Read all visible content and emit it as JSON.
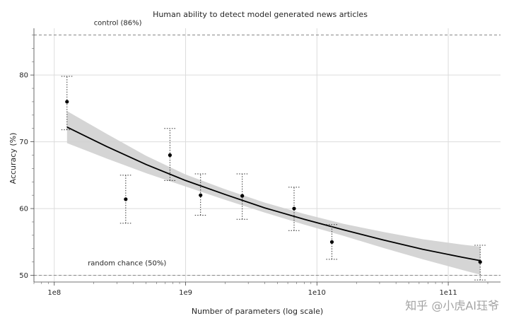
{
  "chart_data": {
    "type": "scatter",
    "title": "Human ability to detect model generated news articles",
    "xlabel": "Number of parameters (log scale)",
    "ylabel": "Accuracy (%)",
    "x_scale": "log",
    "xlim": [
      70000000,
      250000000000
    ],
    "ylim": [
      49,
      87
    ],
    "x_ticks": [
      {
        "value": 100000000,
        "label": "1e8"
      },
      {
        "value": 1000000000,
        "label": "1e9"
      },
      {
        "value": 10000000000,
        "label": "1e10"
      },
      {
        "value": 100000000000,
        "label": "1e11"
      }
    ],
    "y_ticks": [
      50,
      60,
      70,
      80
    ],
    "grid": true,
    "points": [
      {
        "x": 125000000,
        "y": 76.0,
        "ylow": 71.8,
        "yhigh": 79.8
      },
      {
        "x": 350000000,
        "y": 61.4,
        "ylow": 57.8,
        "yhigh": 65.0
      },
      {
        "x": 760000000,
        "y": 68.0,
        "ylow": 64.2,
        "yhigh": 72.0
      },
      {
        "x": 1300000000,
        "y": 62.0,
        "ylow": 59.0,
        "yhigh": 65.2
      },
      {
        "x": 2700000000,
        "y": 61.9,
        "ylow": 58.4,
        "yhigh": 65.2
      },
      {
        "x": 6700000000,
        "y": 60.0,
        "ylow": 56.7,
        "yhigh": 63.2
      },
      {
        "x": 13000000000,
        "y": 55.0,
        "ylow": 52.4,
        "yhigh": 57.6
      },
      {
        "x": 175000000000,
        "y": 52.0,
        "ylow": 49.3,
        "yhigh": 54.5
      }
    ],
    "fit_curve": {
      "x": [
        125000000,
        250000000,
        500000000,
        1000000000,
        2000000000,
        4000000000,
        8000000000,
        16000000000,
        32000000000,
        64000000000,
        128000000000,
        175000000000
      ],
      "y": [
        72.2,
        69.3,
        66.6,
        64.2,
        62.1,
        60.1,
        58.4,
        56.8,
        55.3,
        53.9,
        52.7,
        52.2
      ],
      "y_low": [
        69.8,
        67.5,
        65.3,
        63.3,
        61.3,
        59.4,
        57.6,
        55.9,
        54.1,
        52.4,
        50.8,
        50.1
      ],
      "y_high": [
        74.6,
        71.2,
        67.9,
        65.1,
        62.9,
        60.9,
        59.2,
        57.7,
        56.5,
        55.4,
        54.6,
        54.3
      ]
    },
    "reference_lines": [
      {
        "y": 86,
        "label": "control (86%)",
        "label_x": 200000000
      },
      {
        "y": 50,
        "label": "random chance (50%)",
        "label_x": 180000000
      }
    ]
  },
  "watermark": "知乎 @小虎AI珏爷",
  "colors": {
    "points": "#000000",
    "fit_line": "#000000",
    "band": "#d0d0d0",
    "grid": "#dcdcdc",
    "ref_line": "#888888"
  }
}
